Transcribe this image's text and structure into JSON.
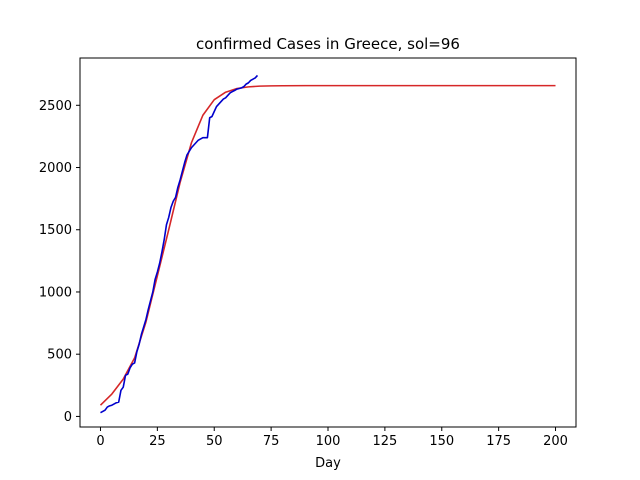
{
  "chart_data": {
    "type": "line",
    "title": "confirmed Cases in Greece, sol=96",
    "xlabel": "Day",
    "ylabel": "",
    "xlim": [
      -9,
      209
    ],
    "ylim": [
      -85,
      2880
    ],
    "xticks": [
      0,
      25,
      50,
      75,
      100,
      125,
      150,
      175,
      200
    ],
    "yticks": [
      0,
      500,
      1000,
      1500,
      2000,
      2500
    ],
    "grid": false,
    "series": [
      {
        "color": "#d62728",
        "x": [
          0,
          5,
          10,
          15,
          20,
          25,
          30,
          35,
          40,
          45,
          50,
          55,
          60,
          65,
          70,
          75,
          80,
          90,
          100,
          125,
          150,
          175,
          200
        ],
        "y": [
          90,
          180,
          300,
          470,
          760,
          1130,
          1500,
          1880,
          2200,
          2420,
          2545,
          2605,
          2635,
          2648,
          2654,
          2656,
          2657,
          2658,
          2658,
          2658,
          2658,
          2658,
          2658
        ]
      },
      {
        "color": "#0000cc",
        "x": [
          0,
          1,
          2,
          3,
          4,
          5,
          6,
          7,
          8,
          9,
          10,
          11,
          12,
          13,
          14,
          15,
          16,
          17,
          18,
          19,
          20,
          21,
          22,
          23,
          24,
          25,
          26,
          27,
          28,
          29,
          30,
          31,
          32,
          33,
          34,
          35,
          36,
          37,
          38,
          39,
          40,
          41,
          42,
          43,
          44,
          45,
          46,
          47,
          48,
          49,
          50,
          51,
          52,
          53,
          54,
          55,
          56,
          57,
          58,
          59,
          60,
          61,
          62,
          63,
          64,
          65,
          66,
          67,
          68,
          69
        ],
        "y": [
          30,
          40,
          50,
          75,
          85,
          90,
          100,
          110,
          115,
          210,
          235,
          330,
          340,
          390,
          420,
          430,
          520,
          580,
          660,
          720,
          780,
          860,
          930,
          1000,
          1100,
          1160,
          1230,
          1320,
          1420,
          1540,
          1600,
          1680,
          1730,
          1760,
          1840,
          1900,
          1970,
          2040,
          2100,
          2130,
          2160,
          2180,
          2200,
          2220,
          2230,
          2240,
          2240,
          2240,
          2400,
          2410,
          2450,
          2490,
          2510,
          2530,
          2550,
          2560,
          2580,
          2600,
          2610,
          2620,
          2630,
          2635,
          2640,
          2650,
          2670,
          2680,
          2700,
          2710,
          2720,
          2740
        ]
      }
    ]
  }
}
